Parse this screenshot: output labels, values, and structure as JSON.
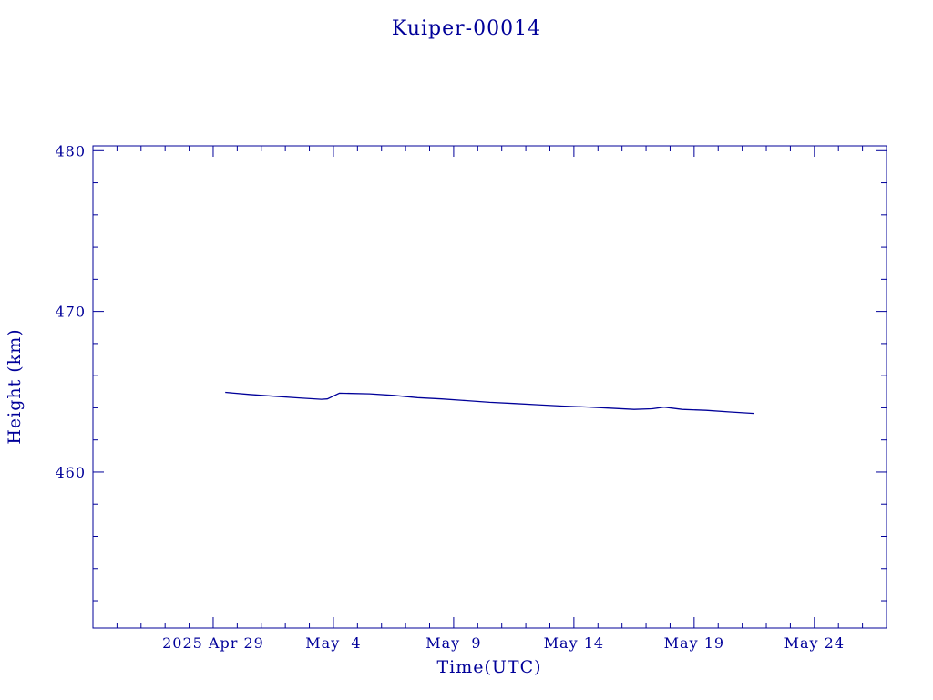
{
  "colors": {
    "ink": "#000099",
    "background": "#ffffff"
  },
  "chart_data": {
    "type": "line",
    "title": "Kuiper-00014",
    "xlabel": "Time(UTC)",
    "ylabel": "Height (km)",
    "x_type": "date",
    "xlim": [
      "2025-04-24",
      "2025-05-27"
    ],
    "ylim": [
      450.3,
      480.3
    ],
    "x_ticks": [
      {
        "date": "2025-04-29",
        "label": "2025 Apr 29"
      },
      {
        "date": "2025-05-04",
        "label": "May  4"
      },
      {
        "date": "2025-05-09",
        "label": "May  9"
      },
      {
        "date": "2025-05-14",
        "label": "May 14"
      },
      {
        "date": "2025-05-19",
        "label": "May 19"
      },
      {
        "date": "2025-05-24",
        "label": "May 24"
      }
    ],
    "x_minor_tick_step_days": 1,
    "y_ticks": [
      {
        "value": 460,
        "label": "460"
      },
      {
        "value": 470,
        "label": "470"
      },
      {
        "value": 480,
        "label": "480"
      }
    ],
    "y_minor_tick_step": 2,
    "grid": false,
    "legend": "none",
    "series": [
      {
        "x": [
          "2025-04-29T12:00",
          "2025-04-30T12:00",
          "2025-05-01T12:00",
          "2025-05-02T12:00",
          "2025-05-03T12:00",
          "2025-05-03T18:00",
          "2025-05-04T06:00",
          "2025-05-05T12:00",
          "2025-05-06T12:00",
          "2025-05-07T12:00",
          "2025-05-08T12:00",
          "2025-05-09T12:00",
          "2025-05-10T12:00",
          "2025-05-11T12:00",
          "2025-05-12T12:00",
          "2025-05-13T12:00",
          "2025-05-14T12:00",
          "2025-05-15T12:00",
          "2025-05-16T12:00",
          "2025-05-17T06:00",
          "2025-05-17T18:00",
          "2025-05-18T12:00",
          "2025-05-19T12:00",
          "2025-05-20T12:00",
          "2025-05-21T12:00"
        ],
        "y": [
          464.96,
          464.83,
          464.72,
          464.62,
          464.53,
          464.55,
          464.91,
          464.87,
          464.77,
          464.63,
          464.55,
          464.45,
          464.34,
          464.27,
          464.19,
          464.11,
          464.05,
          463.98,
          463.9,
          463.94,
          464.04,
          463.9,
          463.84,
          463.74,
          463.65
        ]
      }
    ]
  }
}
